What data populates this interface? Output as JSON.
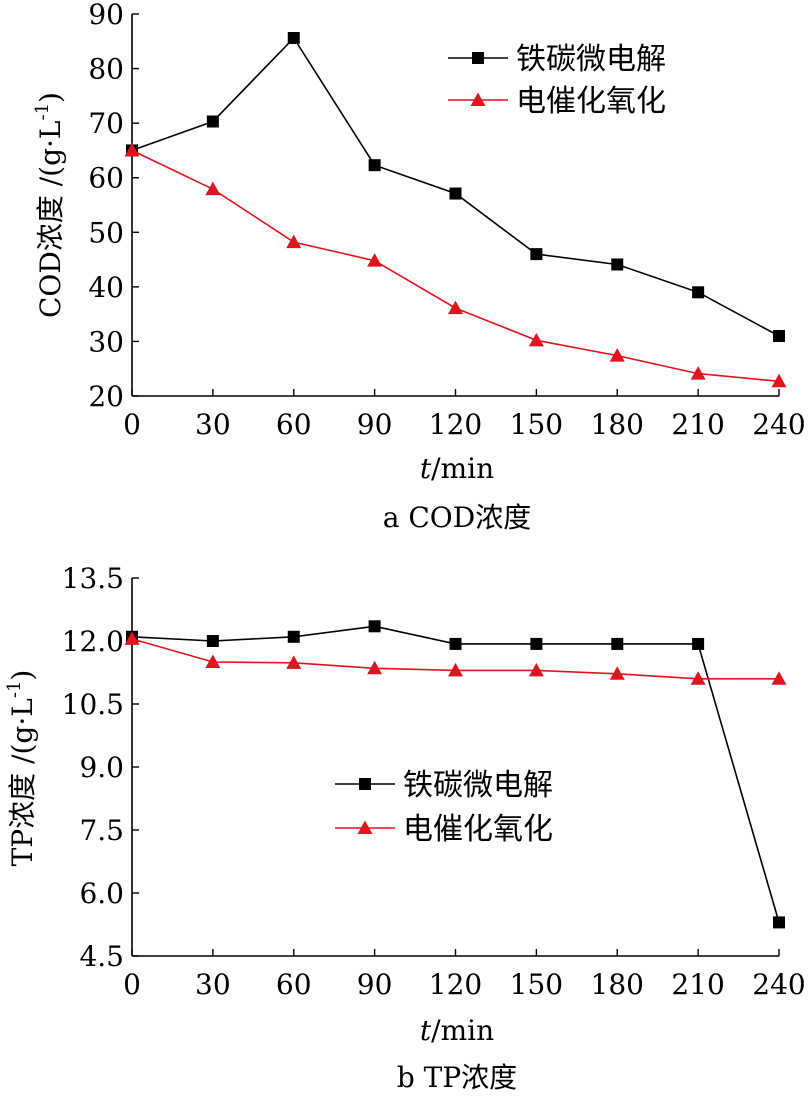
{
  "chart_data": [
    {
      "type": "line",
      "title": "",
      "caption": "a COD浓度",
      "xlabel_italic": "t",
      "xlabel_rest": "/min",
      "ylabel_main": "COD浓度 /(g·L",
      "ylabel_sup": "-1",
      "ylabel_close": ")",
      "x": [
        0,
        30,
        60,
        90,
        120,
        150,
        180,
        210,
        240
      ],
      "xticks": [
        "0",
        "30",
        "60",
        "90",
        "120",
        "150",
        "180",
        "210",
        "240"
      ],
      "xlim": [
        0,
        240
      ],
      "ylim": [
        20,
        90
      ],
      "yticks": [
        20,
        30,
        40,
        50,
        60,
        70,
        80,
        90
      ],
      "ytick_labels": [
        "20",
        "30",
        "40",
        "50",
        "60",
        "70",
        "80",
        "90"
      ],
      "legend_position": "top-right",
      "series": [
        {
          "name": "铁碳微电解",
          "color": "#000000",
          "marker": "square",
          "values": [
            65,
            70.3,
            85.6,
            62.3,
            57.1,
            46,
            44.1,
            39,
            31
          ]
        },
        {
          "name": "电催化氧化",
          "color": "#e0141e",
          "marker": "triangle",
          "values": [
            65,
            57.9,
            48.2,
            44.8,
            36.1,
            30.2,
            27.4,
            24.1,
            22.7
          ]
        }
      ]
    },
    {
      "type": "line",
      "title": "",
      "caption": "b TP浓度",
      "xlabel_italic": "t",
      "xlabel_rest": "/min",
      "ylabel_main": "TP浓度 /(g·L",
      "ylabel_sup": "-1",
      "ylabel_close": ")",
      "x": [
        0,
        30,
        60,
        90,
        120,
        150,
        180,
        210,
        240
      ],
      "xticks": [
        "0",
        "30",
        "60",
        "90",
        "120",
        "150",
        "180",
        "210",
        "240"
      ],
      "xlim": [
        0,
        240
      ],
      "ylim": [
        4.5,
        13.5
      ],
      "yticks": [
        4.5,
        6.0,
        7.5,
        9.0,
        10.5,
        12.0,
        13.5
      ],
      "ytick_labels": [
        "4.5",
        "6.0",
        "7.5",
        "9.0",
        "10.5",
        "12.0",
        "13.5"
      ],
      "legend_position": "center-right",
      "series": [
        {
          "name": "铁碳微电解",
          "color": "#000000",
          "marker": "square",
          "values": [
            12.1,
            12.0,
            12.1,
            12.35,
            11.93,
            11.93,
            11.93,
            11.93,
            5.3
          ]
        },
        {
          "name": "电催化氧化",
          "color": "#e0141e",
          "marker": "triangle",
          "values": [
            12.05,
            11.5,
            11.48,
            11.35,
            11.3,
            11.3,
            11.22,
            11.1,
            11.1
          ]
        }
      ]
    }
  ]
}
